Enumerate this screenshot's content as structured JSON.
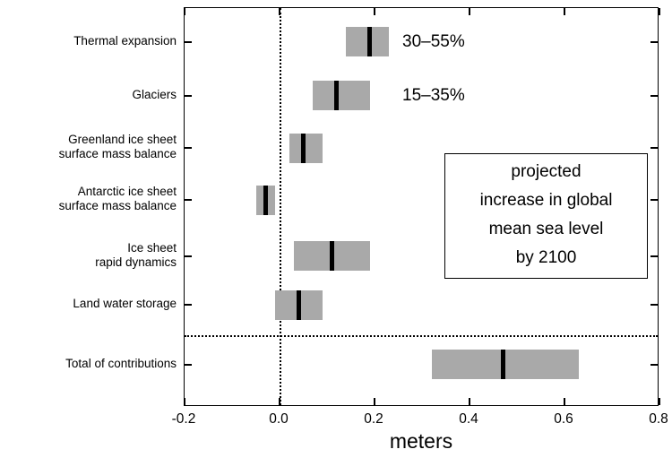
{
  "chart_data": {
    "type": "bar",
    "subtype": "horizontal-range-bars-with-median",
    "title": "",
    "xlabel": "meters",
    "xlim": [
      -0.2,
      0.8
    ],
    "x_ticks": [
      -0.2,
      0.0,
      0.2,
      0.4,
      0.6,
      0.8
    ],
    "x_tick_labels": [
      "-0.2",
      "0.0",
      "0.2",
      "0.4",
      "0.6",
      "0.8"
    ],
    "grid": "off",
    "bar_color": "#a9a9a9",
    "median_color": "#000000",
    "zero_reference_line_x": 0.0,
    "categories": [
      {
        "label_lines": [
          "Thermal expansion"
        ],
        "low": 0.14,
        "high": 0.23,
        "median": 0.19,
        "annotation": "30–55%"
      },
      {
        "label_lines": [
          "Glaciers"
        ],
        "low": 0.07,
        "high": 0.19,
        "median": 0.12,
        "annotation": "15–35%"
      },
      {
        "label_lines": [
          "Greenland ice sheet",
          "surface mass balance"
        ],
        "low": 0.02,
        "high": 0.09,
        "median": 0.05
      },
      {
        "label_lines": [
          "Antarctic ice sheet",
          "surface mass balance"
        ],
        "low": -0.05,
        "high": -0.01,
        "median": -0.03
      },
      {
        "label_lines": [
          "Ice sheet",
          "rapid dynamics"
        ],
        "low": 0.03,
        "high": 0.19,
        "median": 0.11
      },
      {
        "label_lines": [
          "Land water storage"
        ],
        "low": -0.01,
        "high": 0.09,
        "median": 0.04
      }
    ],
    "total": {
      "label_lines": [
        "Total of contributions"
      ],
      "low": 0.32,
      "high": 0.63,
      "median": 0.47
    },
    "annotation_box": {
      "lines": [
        "projected",
        "increase in global",
        "mean sea level",
        "by 2100"
      ]
    }
  }
}
